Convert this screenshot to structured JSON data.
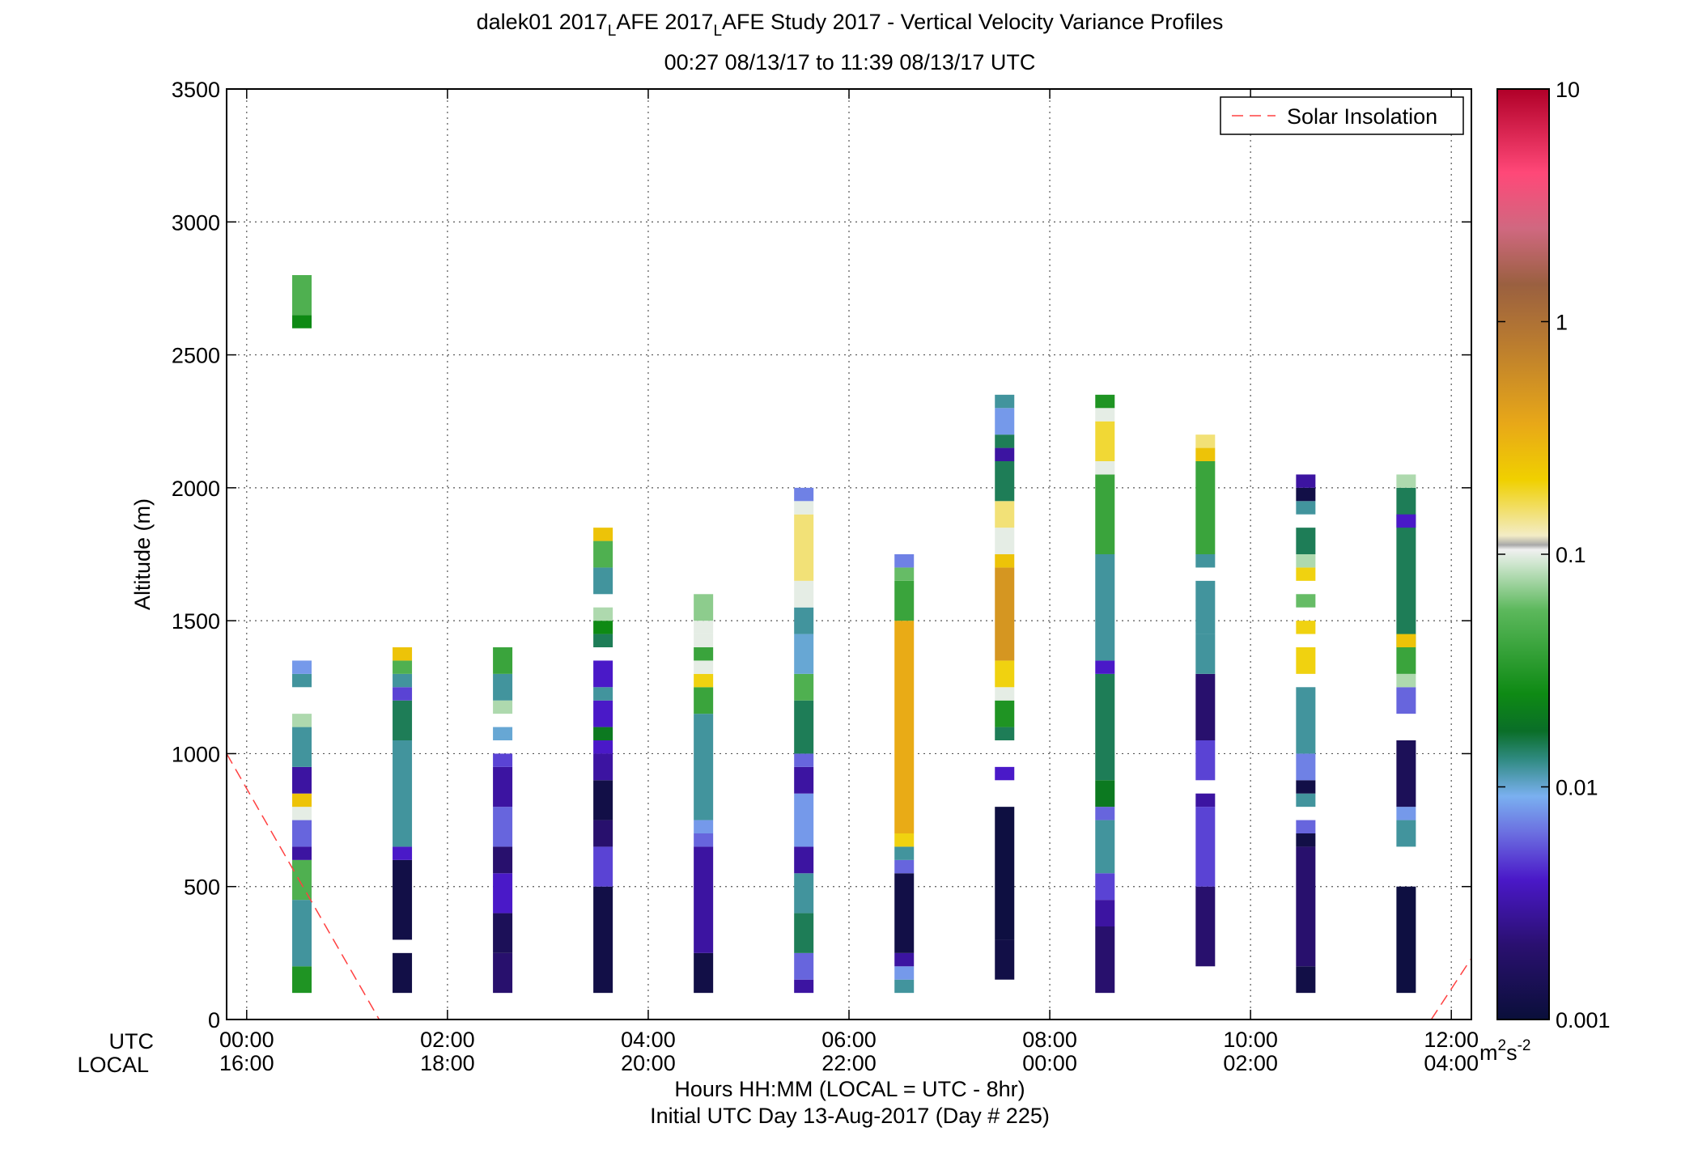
{
  "title": {
    "line1_part1": "dalek01 2017",
    "line1_sub1": "L",
    "line1_part2": "AFE 2017",
    "line1_sub2": "L",
    "line1_part3": "AFE Study 2017 - Vertical Velocity Variance Profiles",
    "line2": "00:27 08/13/17 to 11:39 08/13/17  UTC"
  },
  "legend": {
    "label": "Solar Insolation",
    "color": "#ff4040"
  },
  "x_axis": {
    "row_label_utc": "UTC",
    "row_label_local": "LOCAL",
    "ticks_utc": [
      "00:00",
      "02:00",
      "04:00",
      "06:00",
      "08:00",
      "10:00",
      "12:00"
    ],
    "ticks_local": [
      "16:00",
      "18:00",
      "20:00",
      "22:00",
      "00:00",
      "02:00",
      "04:00"
    ],
    "label_line1": "Hours HH:MM  (LOCAL = UTC - 8hr)",
    "label_line2": "Initial UTC Day 13-Aug-2017 (Day # 225)"
  },
  "colorbar": {
    "ticks": [
      "10",
      "1",
      "0.1",
      "0.01",
      "0.001"
    ],
    "unit_base": "m",
    "unit_exp1": "2",
    "unit_mid": "s",
    "unit_exp2": "-2"
  },
  "chart_data": {
    "type": "heatmap",
    "xlabel": "Hours HH:MM  (LOCAL = UTC - 8hr)",
    "ylabel": "Altitude (m)",
    "xlim_hours_utc": [
      -0.2,
      12.2
    ],
    "ylim": [
      0,
      3500
    ],
    "yticks": [
      0,
      500,
      1000,
      1500,
      2000,
      2500,
      3000,
      3500
    ],
    "grid": true,
    "legend_position": "top-right",
    "color_scale": "log",
    "clim": [
      0.001,
      10
    ],
    "colorbar_label": "m^2 s^-2",
    "gate_height_m": 50,
    "profiles": [
      {
        "time_utc": "00:33",
        "hour": 0.55,
        "segments": [
          {
            "bottom": 100,
            "top": 200,
            "value": 0.03
          },
          {
            "bottom": 200,
            "top": 450,
            "value": 0.012
          },
          {
            "bottom": 450,
            "top": 600,
            "value": 0.05
          },
          {
            "bottom": 600,
            "top": 650,
            "value": 0.003
          },
          {
            "bottom": 650,
            "top": 750,
            "value": 0.006
          },
          {
            "bottom": 750,
            "top": 800,
            "value": 0.1
          },
          {
            "bottom": 800,
            "top": 850,
            "value": 0.25
          },
          {
            "bottom": 850,
            "top": 950,
            "value": 0.003
          },
          {
            "bottom": 950,
            "top": 1100,
            "value": 0.012
          },
          {
            "bottom": 1100,
            "top": 1150,
            "value": 0.08
          },
          {
            "bottom": 1250,
            "top": 1300,
            "value": 0.012
          },
          {
            "bottom": 1300,
            "top": 1350,
            "value": 0.008
          },
          {
            "bottom": 2600,
            "top": 2650,
            "value": 0.025
          },
          {
            "bottom": 2650,
            "top": 2800,
            "value": 0.05
          }
        ]
      },
      {
        "time_utc": "01:33",
        "hour": 1.55,
        "segments": [
          {
            "bottom": 100,
            "top": 250,
            "value": 0.0012
          },
          {
            "bottom": 300,
            "top": 600,
            "value": 0.0012
          },
          {
            "bottom": 600,
            "top": 650,
            "value": 0.004
          },
          {
            "bottom": 650,
            "top": 1050,
            "value": 0.012
          },
          {
            "bottom": 1050,
            "top": 1200,
            "value": 0.015
          },
          {
            "bottom": 1200,
            "top": 1250,
            "value": 0.005
          },
          {
            "bottom": 1250,
            "top": 1300,
            "value": 0.012
          },
          {
            "bottom": 1300,
            "top": 1350,
            "value": 0.05
          },
          {
            "bottom": 1350,
            "top": 1400,
            "value": 0.25
          }
        ]
      },
      {
        "time_utc": "02:33",
        "hour": 2.55,
        "segments": [
          {
            "bottom": 100,
            "top": 250,
            "value": 0.002
          },
          {
            "bottom": 250,
            "top": 400,
            "value": 0.0015
          },
          {
            "bottom": 400,
            "top": 550,
            "value": 0.004
          },
          {
            "bottom": 550,
            "top": 650,
            "value": 0.002
          },
          {
            "bottom": 650,
            "top": 800,
            "value": 0.006
          },
          {
            "bottom": 800,
            "top": 950,
            "value": 0.003
          },
          {
            "bottom": 950,
            "top": 1000,
            "value": 0.005
          },
          {
            "bottom": 1050,
            "top": 1100,
            "value": 0.01
          },
          {
            "bottom": 1150,
            "top": 1200,
            "value": 0.08
          },
          {
            "bottom": 1200,
            "top": 1300,
            "value": 0.012
          },
          {
            "bottom": 1300,
            "top": 1400,
            "value": 0.04
          }
        ]
      },
      {
        "time_utc": "03:33",
        "hour": 3.55,
        "segments": [
          {
            "bottom": 100,
            "top": 500,
            "value": 0.0012
          },
          {
            "bottom": 500,
            "top": 650,
            "value": 0.005
          },
          {
            "bottom": 650,
            "top": 750,
            "value": 0.002
          },
          {
            "bottom": 750,
            "top": 900,
            "value": 0.0012
          },
          {
            "bottom": 900,
            "top": 1000,
            "value": 0.003
          },
          {
            "bottom": 1000,
            "top": 1050,
            "value": 0.004
          },
          {
            "bottom": 1050,
            "top": 1100,
            "value": 0.02
          },
          {
            "bottom": 1100,
            "top": 1200,
            "value": 0.004
          },
          {
            "bottom": 1200,
            "top": 1250,
            "value": 0.012
          },
          {
            "bottom": 1250,
            "top": 1350,
            "value": 0.004
          },
          {
            "bottom": 1400,
            "top": 1450,
            "value": 0.015
          },
          {
            "bottom": 1450,
            "top": 1500,
            "value": 0.025
          },
          {
            "bottom": 1500,
            "top": 1550,
            "value": 0.08
          },
          {
            "bottom": 1600,
            "top": 1700,
            "value": 0.012
          },
          {
            "bottom": 1700,
            "top": 1800,
            "value": 0.05
          },
          {
            "bottom": 1800,
            "top": 1850,
            "value": 0.25
          }
        ]
      },
      {
        "time_utc": "04:33",
        "hour": 4.55,
        "segments": [
          {
            "bottom": 100,
            "top": 250,
            "value": 0.0012
          },
          {
            "bottom": 250,
            "top": 650,
            "value": 0.003
          },
          {
            "bottom": 650,
            "top": 700,
            "value": 0.006
          },
          {
            "bottom": 700,
            "top": 750,
            "value": 0.008
          },
          {
            "bottom": 750,
            "top": 1150,
            "value": 0.012
          },
          {
            "bottom": 1150,
            "top": 1250,
            "value": 0.04
          },
          {
            "bottom": 1250,
            "top": 1300,
            "value": 0.2
          },
          {
            "bottom": 1300,
            "top": 1350,
            "value": 0.1
          },
          {
            "bottom": 1350,
            "top": 1400,
            "value": 0.04
          },
          {
            "bottom": 1400,
            "top": 1450,
            "value": 0.1
          },
          {
            "bottom": 1450,
            "top": 1500,
            "value": 0.1
          },
          {
            "bottom": 1500,
            "top": 1600,
            "value": 0.07
          }
        ]
      },
      {
        "time_utc": "05:33",
        "hour": 5.55,
        "segments": [
          {
            "bottom": 100,
            "top": 150,
            "value": 0.003
          },
          {
            "bottom": 150,
            "top": 250,
            "value": 0.006
          },
          {
            "bottom": 250,
            "top": 400,
            "value": 0.015
          },
          {
            "bottom": 400,
            "top": 550,
            "value": 0.012
          },
          {
            "bottom": 550,
            "top": 650,
            "value": 0.003
          },
          {
            "bottom": 650,
            "top": 850,
            "value": 0.008
          },
          {
            "bottom": 850,
            "top": 950,
            "value": 0.003
          },
          {
            "bottom": 950,
            "top": 1000,
            "value": 0.006
          },
          {
            "bottom": 1000,
            "top": 1200,
            "value": 0.015
          },
          {
            "bottom": 1200,
            "top": 1300,
            "value": 0.05
          },
          {
            "bottom": 1300,
            "top": 1450,
            "value": 0.01
          },
          {
            "bottom": 1450,
            "top": 1550,
            "value": 0.012
          },
          {
            "bottom": 1550,
            "top": 1650,
            "value": 0.1
          },
          {
            "bottom": 1650,
            "top": 1900,
            "value": 0.15
          },
          {
            "bottom": 1900,
            "top": 1950,
            "value": 0.1
          },
          {
            "bottom": 1950,
            "top": 2000,
            "value": 0.007
          }
        ]
      },
      {
        "time_utc": "06:33",
        "hour": 6.55,
        "segments": [
          {
            "bottom": 100,
            "top": 150,
            "value": 0.012
          },
          {
            "bottom": 150,
            "top": 200,
            "value": 0.008
          },
          {
            "bottom": 200,
            "top": 250,
            "value": 0.003
          },
          {
            "bottom": 250,
            "top": 550,
            "value": 0.0012
          },
          {
            "bottom": 550,
            "top": 600,
            "value": 0.006
          },
          {
            "bottom": 600,
            "top": 650,
            "value": 0.012
          },
          {
            "bottom": 650,
            "top": 700,
            "value": 0.2
          },
          {
            "bottom": 700,
            "top": 1500,
            "value": 0.35
          },
          {
            "bottom": 1500,
            "top": 1650,
            "value": 0.04
          },
          {
            "bottom": 1650,
            "top": 1700,
            "value": 0.06
          },
          {
            "bottom": 1700,
            "top": 1750,
            "value": 0.007
          }
        ]
      },
      {
        "time_utc": "07:33",
        "hour": 7.55,
        "segments": [
          {
            "bottom": 150,
            "top": 300,
            "value": 0.0012
          },
          {
            "bottom": 300,
            "top": 800,
            "value": 0.0011
          },
          {
            "bottom": 900,
            "top": 950,
            "value": 0.004
          },
          {
            "bottom": 1050,
            "top": 1100,
            "value": 0.015
          },
          {
            "bottom": 1100,
            "top": 1200,
            "value": 0.03
          },
          {
            "bottom": 1200,
            "top": 1250,
            "value": 0.1
          },
          {
            "bottom": 1250,
            "top": 1350,
            "value": 0.2
          },
          {
            "bottom": 1350,
            "top": 1700,
            "value": 0.5
          },
          {
            "bottom": 1700,
            "top": 1750,
            "value": 0.25
          },
          {
            "bottom": 1750,
            "top": 1850,
            "value": 0.1
          },
          {
            "bottom": 1850,
            "top": 1950,
            "value": 0.15
          },
          {
            "bottom": 1950,
            "top": 2100,
            "value": 0.015
          },
          {
            "bottom": 2100,
            "top": 2150,
            "value": 0.003
          },
          {
            "bottom": 2150,
            "top": 2200,
            "value": 0.015
          },
          {
            "bottom": 2200,
            "top": 2300,
            "value": 0.008
          },
          {
            "bottom": 2300,
            "top": 2350,
            "value": 0.012
          }
        ]
      },
      {
        "time_utc": "08:33",
        "hour": 8.55,
        "segments": [
          {
            "bottom": 100,
            "top": 350,
            "value": 0.002
          },
          {
            "bottom": 350,
            "top": 450,
            "value": 0.003
          },
          {
            "bottom": 450,
            "top": 550,
            "value": 0.005
          },
          {
            "bottom": 550,
            "top": 750,
            "value": 0.012
          },
          {
            "bottom": 750,
            "top": 800,
            "value": 0.006
          },
          {
            "bottom": 800,
            "top": 900,
            "value": 0.02
          },
          {
            "bottom": 900,
            "top": 1300,
            "value": 0.015
          },
          {
            "bottom": 1300,
            "top": 1350,
            "value": 0.004
          },
          {
            "bottom": 1350,
            "top": 1750,
            "value": 0.012
          },
          {
            "bottom": 1750,
            "top": 2050,
            "value": 0.04
          },
          {
            "bottom": 2050,
            "top": 2100,
            "value": 0.1
          },
          {
            "bottom": 2100,
            "top": 2250,
            "value": 0.18
          },
          {
            "bottom": 2250,
            "top": 2300,
            "value": 0.1
          },
          {
            "bottom": 2300,
            "top": 2350,
            "value": 0.03
          }
        ]
      },
      {
        "time_utc": "09:33",
        "hour": 9.55,
        "segments": [
          {
            "bottom": 200,
            "top": 500,
            "value": 0.002
          },
          {
            "bottom": 500,
            "top": 800,
            "value": 0.005
          },
          {
            "bottom": 800,
            "top": 850,
            "value": 0.003
          },
          {
            "bottom": 900,
            "top": 1050,
            "value": 0.005
          },
          {
            "bottom": 1050,
            "top": 1300,
            "value": 0.002
          },
          {
            "bottom": 1300,
            "top": 1450,
            "value": 0.012
          },
          {
            "bottom": 1450,
            "top": 1650,
            "value": 0.012
          },
          {
            "bottom": 1700,
            "top": 1750,
            "value": 0.012
          },
          {
            "bottom": 1750,
            "top": 2100,
            "value": 0.04
          },
          {
            "bottom": 2100,
            "top": 2150,
            "value": 0.25
          },
          {
            "bottom": 2150,
            "top": 2200,
            "value": 0.15
          }
        ]
      },
      {
        "time_utc": "10:33",
        "hour": 10.55,
        "segments": [
          {
            "bottom": 100,
            "top": 200,
            "value": 0.0012
          },
          {
            "bottom": 200,
            "top": 650,
            "value": 0.002
          },
          {
            "bottom": 650,
            "top": 700,
            "value": 0.0012
          },
          {
            "bottom": 700,
            "top": 750,
            "value": 0.006
          },
          {
            "bottom": 800,
            "top": 850,
            "value": 0.012
          },
          {
            "bottom": 850,
            "top": 900,
            "value": 0.0012
          },
          {
            "bottom": 900,
            "top": 1000,
            "value": 0.007
          },
          {
            "bottom": 1000,
            "top": 1250,
            "value": 0.012
          },
          {
            "bottom": 1300,
            "top": 1400,
            "value": 0.2
          },
          {
            "bottom": 1450,
            "top": 1500,
            "value": 0.2
          },
          {
            "bottom": 1550,
            "top": 1600,
            "value": 0.06
          },
          {
            "bottom": 1650,
            "top": 1700,
            "value": 0.2
          },
          {
            "bottom": 1700,
            "top": 1750,
            "value": 0.08
          },
          {
            "bottom": 1750,
            "top": 1850,
            "value": 0.015
          },
          {
            "bottom": 1900,
            "top": 1950,
            "value": 0.012
          },
          {
            "bottom": 1950,
            "top": 2000,
            "value": 0.0012
          },
          {
            "bottom": 2000,
            "top": 2050,
            "value": 0.003
          }
        ]
      },
      {
        "time_utc": "11:33",
        "hour": 11.55,
        "segments": [
          {
            "bottom": 100,
            "top": 500,
            "value": 0.0011
          },
          {
            "bottom": 650,
            "top": 750,
            "value": 0.012
          },
          {
            "bottom": 750,
            "top": 800,
            "value": 0.008
          },
          {
            "bottom": 800,
            "top": 1050,
            "value": 0.0015
          },
          {
            "bottom": 1150,
            "top": 1250,
            "value": 0.006
          },
          {
            "bottom": 1250,
            "top": 1300,
            "value": 0.08
          },
          {
            "bottom": 1300,
            "top": 1450,
            "value": 0.04
          },
          {
            "bottom": 1400,
            "top": 1450,
            "value": 0.25
          },
          {
            "bottom": 1450,
            "top": 2000,
            "value": 0.015
          },
          {
            "bottom": 2000,
            "top": 2050,
            "value": 0.08
          },
          {
            "bottom": 1850,
            "top": 1900,
            "value": 0.004
          }
        ]
      }
    ],
    "solar_insolation": {
      "name": "Solar Insolation",
      "style": "dashed",
      "segments": [
        [
          {
            "hour": -0.2,
            "alt": 1000
          },
          {
            "hour": 1.32,
            "alt": 0
          }
        ],
        [
          {
            "hour": 11.8,
            "alt": 0
          },
          {
            "hour": 12.2,
            "alt": 230
          }
        ]
      ]
    }
  }
}
